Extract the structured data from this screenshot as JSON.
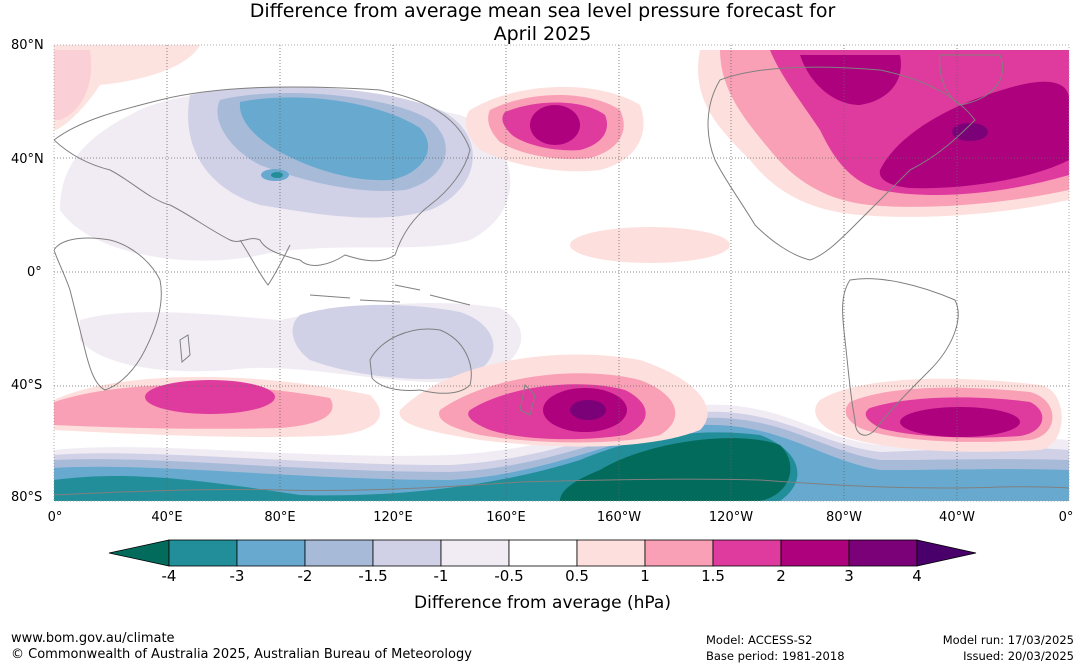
{
  "title_line1": "Difference from average mean sea level pressure forecast for",
  "title_line2": "April 2025",
  "lat_labels": [
    "80°N",
    "40°N",
    "0°",
    "40°S",
    "80°S"
  ],
  "lon_labels": [
    "0°",
    "40°E",
    "80°E",
    "120°E",
    "160°E",
    "160°W",
    "120°W",
    "80°W",
    "40°W",
    "0°"
  ],
  "colorbar": {
    "ticks": [
      "-4",
      "-3",
      "-2",
      "-1.5",
      "-1",
      "-0.5",
      "0.5",
      "1",
      "1.5",
      "2",
      "3",
      "4"
    ],
    "colors": [
      "#026b5b",
      "#218e99",
      "#67a9cf",
      "#a7bbd9",
      "#d0d1e6",
      "#f1ecf4",
      "#ffffff",
      "#fde0dd",
      "#f99fb6",
      "#df3a9d",
      "#ae017e",
      "#7a0177",
      "#49006a"
    ],
    "label": "Difference from average (hPa)"
  },
  "footer": {
    "url": "www.bom.gov.au/climate",
    "copyright": "© Commonwealth of Australia 2025, Australian Bureau of Meteorology",
    "model": "Model: ACCESS-S2",
    "base_period": "Base period: 1981-2018",
    "model_run": "Model run: 17/03/2025",
    "issued": "Issued: 20/03/2025"
  }
}
